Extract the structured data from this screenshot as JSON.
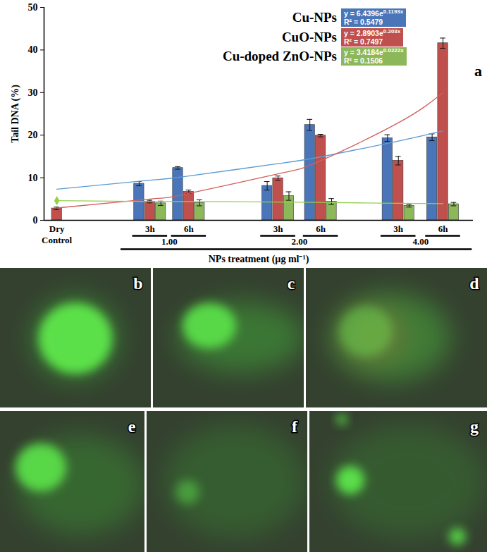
{
  "chart_data": {
    "type": "bar",
    "panel_label": "a",
    "x_label": "NPs treatment (µg ml⁻¹)",
    "y_label": "Tail DNA (%)",
    "categories": [
      "Dry Control",
      "3h",
      "6h",
      "3h",
      "6h",
      "3h",
      "6h"
    ],
    "group_labels": [
      null,
      "1.00",
      "1.00",
      "2.00",
      "2.00",
      "4.00",
      "4.00"
    ],
    "ylim": [
      0,
      50
    ],
    "yticks": [
      0,
      10,
      20,
      30,
      40,
      50
    ],
    "grid": false,
    "series": [
      {
        "name": "Cu-NPs",
        "color": "#4a76b9",
        "values": [
          null,
          8.6,
          12.3,
          8.1,
          22.4,
          19.3,
          19.5
        ],
        "errors": [
          null,
          0.5,
          0.3,
          1.0,
          1.3,
          0.8,
          0.8
        ],
        "trend": {
          "equation": "y = 6.4396e",
          "exponent": "0.1193x",
          "r2_label": "R² = 0.5479",
          "color": "#5b9bd5",
          "values": [
            7.3,
            9.4,
            10.4,
            13.3,
            14.9,
            18.6,
            21.0
          ]
        }
      },
      {
        "name": "CuO-NPs",
        "color": "#c0504d",
        "values": [
          2.8,
          4.4,
          6.7,
          9.9,
          19.9,
          14.0,
          41.6
        ],
        "errors": [
          0.3,
          0.3,
          0.4,
          0.5,
          0.3,
          1.0,
          1.2
        ],
        "trend": {
          "equation": "y = 2.8903e",
          "exponent": "0.203x",
          "r2_label": "R² = 0.7497",
          "color": "#d0605d",
          "values": [
            2.9,
            5.0,
            6.3,
            10.9,
            14.0,
            22.9,
            30.0
          ]
        }
      },
      {
        "name": "Cu-doped ZnO-NPs",
        "color": "#8db85a",
        "values": [
          null,
          4.0,
          4.1,
          5.7,
          4.4,
          3.4,
          3.8
        ],
        "errors": [
          null,
          0.5,
          0.7,
          1.0,
          0.7,
          0.3,
          0.4
        ],
        "trend": {
          "equation": "y = 3.4184e",
          "exponent": "0.0222x",
          "r2_label": "R² = 0.1506",
          "color": "#92d050",
          "marker": "diamond",
          "values": [
            4.6,
            4.4,
            4.4,
            4.3,
            4.2,
            4.0,
            3.9
          ]
        }
      }
    ]
  },
  "image_panels": {
    "labels": [
      "b",
      "c",
      "d",
      "e",
      "f",
      "g"
    ]
  }
}
